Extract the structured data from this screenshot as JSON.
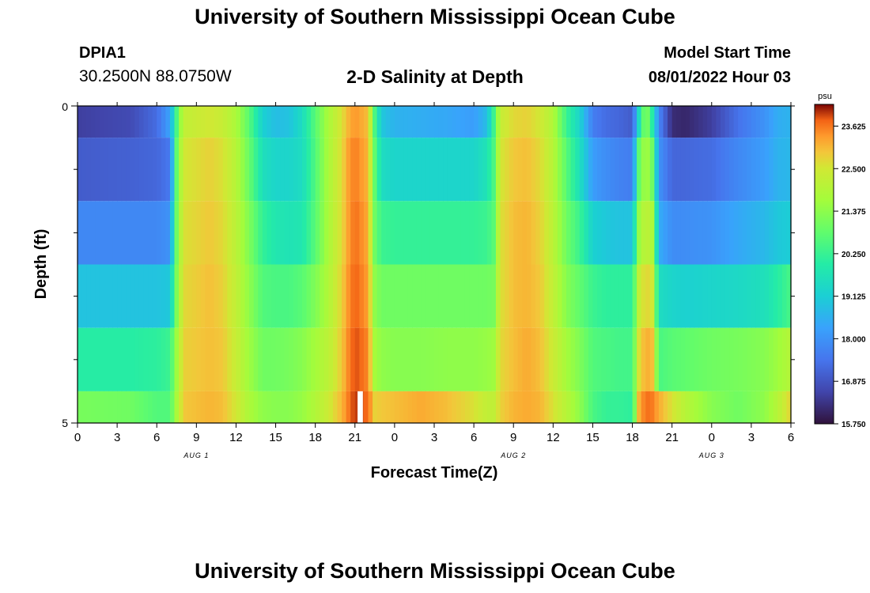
{
  "header": {
    "title": "University of Southern Mississippi Ocean Cube",
    "station_id": "DPIA1",
    "coords": "30.2500N  88.0750W",
    "chart_title": "2-D Salinity at Depth",
    "start_label": "Model Start Time",
    "start_value": "08/01/2022 Hour 03"
  },
  "footer": {
    "title": "University of Southern Mississippi Ocean Cube"
  },
  "chart_data": {
    "type": "heatmap",
    "title": "2-D Salinity at Depth",
    "xlabel": "Forecast Time(Z)",
    "ylabel": "Depth (ft)",
    "x_tick_labels": [
      "0",
      "3",
      "6",
      "9",
      "12",
      "15",
      "18",
      "21",
      "0",
      "3",
      "6",
      "9",
      "12",
      "15",
      "18",
      "21",
      "0",
      "3",
      "6"
    ],
    "y_tick_labels": [
      "0",
      "5"
    ],
    "date_labels": [
      {
        "label": "AUG 1",
        "tick": 3
      },
      {
        "label": "AUG 2",
        "tick": 11
      },
      {
        "label": "AUG 3",
        "tick": 16
      }
    ],
    "x_hours": [
      0,
      54
    ],
    "colorbar": {
      "unit": "psu",
      "min": 15.75,
      "max": 24.2,
      "ticks": [
        "23.625",
        "22.500",
        "21.375",
        "20.250",
        "19.125",
        "18.000",
        "16.875",
        "15.750"
      ],
      "tick_values": [
        23.625,
        22.5,
        21.375,
        20.25,
        19.125,
        18.0,
        16.875,
        15.75
      ]
    },
    "depth_layers": [
      0,
      0.5,
      1.5,
      2.5,
      3.5,
      4.5,
      5
    ],
    "nodes_hours": [
      0,
      4,
      6,
      7,
      7.5,
      8,
      10,
      11,
      12,
      13,
      14,
      15,
      16,
      17,
      18,
      19,
      20,
      20.5,
      21,
      22,
      22.5,
      23,
      24,
      26,
      28,
      30,
      31,
      31.5,
      32,
      33,
      34,
      35,
      36,
      37,
      38,
      39,
      40,
      41,
      42,
      42.5,
      43,
      43.5,
      44,
      45,
      46,
      48,
      50,
      52,
      53,
      54
    ],
    "salinity": [
      [
        16.5,
        16.7,
        17.3,
        18.3,
        20.5,
        22.2,
        22.5,
        22.3,
        21.8,
        20.7,
        19.2,
        18.8,
        18.9,
        19.5,
        20.7,
        21.8,
        22.6,
        23.1,
        23.4,
        23.0,
        20.5,
        19.0,
        18.6,
        18.5,
        18.4,
        18.2,
        18.8,
        20.3,
        22.3,
        22.7,
        22.8,
        22.5,
        21.9,
        20.3,
        19.3,
        17.6,
        17.3,
        17.2,
        17.0,
        19.5,
        21.5,
        20.0,
        17.8,
        16.2,
        16.1,
        16.5,
        17.4,
        18.0,
        18.5,
        18.6
      ],
      [
        17.0,
        17.1,
        17.2,
        17.5,
        20.8,
        22.5,
        22.8,
        22.6,
        22.0,
        20.9,
        19.6,
        19.3,
        19.3,
        19.5,
        20.6,
        21.8,
        22.7,
        23.3,
        23.6,
        23.1,
        20.8,
        19.5,
        19.3,
        19.3,
        19.3,
        19.3,
        19.7,
        20.5,
        22.5,
        22.9,
        23.0,
        22.7,
        22.0,
        20.7,
        19.6,
        18.2,
        17.9,
        17.7,
        17.6,
        20.8,
        21.8,
        21.0,
        18.0,
        17.2,
        17.2,
        17.3,
        17.8,
        18.2,
        18.6,
        18.7
      ],
      [
        17.8,
        17.8,
        17.8,
        18.0,
        21.0,
        22.6,
        22.9,
        22.7,
        22.1,
        21.2,
        20.2,
        19.8,
        19.7,
        19.8,
        20.7,
        21.8,
        22.7,
        23.3,
        23.7,
        23.2,
        21.0,
        20.3,
        20.2,
        20.2,
        20.2,
        20.2,
        20.3,
        20.7,
        22.6,
        23.0,
        23.1,
        22.8,
        22.1,
        21.0,
        20.3,
        19.2,
        19.0,
        18.9,
        18.9,
        21.5,
        22.2,
        21.8,
        18.5,
        17.9,
        17.9,
        18.0,
        18.4,
        18.7,
        19.0,
        19.1
      ],
      [
        18.9,
        18.9,
        18.9,
        19.0,
        21.2,
        22.7,
        23.0,
        22.8,
        22.2,
        21.4,
        20.6,
        20.5,
        20.5,
        20.7,
        21.2,
        21.9,
        22.8,
        23.4,
        23.8,
        23.3,
        21.4,
        21.0,
        21.0,
        21.0,
        21.0,
        21.0,
        21.0,
        21.1,
        22.6,
        23.0,
        23.1,
        22.9,
        22.2,
        21.3,
        20.8,
        20.3,
        20.1,
        20.1,
        20.1,
        22.2,
        22.8,
        22.5,
        19.5,
        19.3,
        19.2,
        19.3,
        19.4,
        19.6,
        20.0,
        20.5
      ],
      [
        20.0,
        20.0,
        20.1,
        20.3,
        21.6,
        22.8,
        23.0,
        22.9,
        22.3,
        21.6,
        21.0,
        21.0,
        21.1,
        21.3,
        21.7,
        22.1,
        22.9,
        23.5,
        23.9,
        23.5,
        21.7,
        21.4,
        21.3,
        21.3,
        21.4,
        21.4,
        21.5,
        21.6,
        22.7,
        23.0,
        23.2,
        23.0,
        22.4,
        21.7,
        21.2,
        20.6,
        20.5,
        20.4,
        20.4,
        22.6,
        23.2,
        23.0,
        20.5,
        20.7,
        20.8,
        21.0,
        21.1,
        21.3,
        21.6,
        22.0
      ],
      [
        21.1,
        21.0,
        20.6,
        20.6,
        21.8,
        22.9,
        23.1,
        23.0,
        22.5,
        21.8,
        21.4,
        21.3,
        21.3,
        21.5,
        21.9,
        22.4,
        23.1,
        23.6,
        24.0,
        23.7,
        22.8,
        22.9,
        23.0,
        23.2,
        23.0,
        22.6,
        22.2,
        22.2,
        22.8,
        23.1,
        23.2,
        23.1,
        22.6,
        22.0,
        21.4,
        20.5,
        20.2,
        20.2,
        20.1,
        23.1,
        23.7,
        23.6,
        23.2,
        22.6,
        22.0,
        21.3,
        21.0,
        21.4,
        22.0,
        22.8
      ]
    ],
    "missing_cells": [
      {
        "depth_layer": 5,
        "hour_from": 21.2,
        "hour_to": 21.6
      }
    ]
  }
}
